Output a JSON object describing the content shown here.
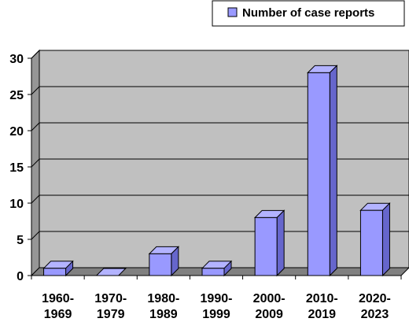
{
  "chart_data": {
    "type": "bar",
    "categories": [
      [
        "1960-",
        "1969"
      ],
      [
        "1970-",
        "1979"
      ],
      [
        "1980-",
        "1989"
      ],
      [
        "1990-",
        "1999"
      ],
      [
        "2000-",
        "2009"
      ],
      [
        "2010-",
        "2019"
      ],
      [
        "2020-",
        "2023"
      ]
    ],
    "series": [
      {
        "name": "Number of case reports",
        "values": [
          1,
          0,
          3,
          1,
          8,
          28,
          9
        ]
      }
    ],
    "ylim": [
      0,
      30
    ],
    "yticks": [
      0,
      5,
      10,
      15,
      20,
      25,
      30
    ],
    "grid": true,
    "legend_position": "top-right",
    "style": "3d-bar",
    "colors": {
      "bar_front": "#9999ff",
      "bar_side": "#6666cc",
      "bar_top": "#b3b3ff",
      "plot_back": "#c0c0c0",
      "plot_floor": "#808080",
      "plot_wall": "#969696"
    }
  }
}
